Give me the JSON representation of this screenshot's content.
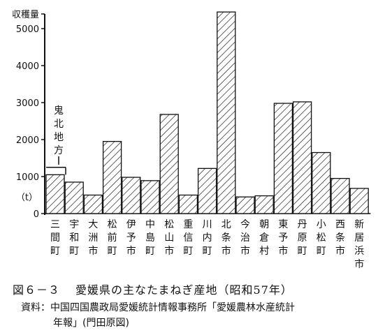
{
  "chart_data": {
    "type": "bar",
    "ylabel": "収穫量",
    "unit": "（t）",
    "ylim": [
      0,
      5600
    ],
    "yticks": [
      0,
      1000,
      2000,
      3000,
      4000,
      5000
    ],
    "categories": [
      [
        "三",
        "間",
        "町"
      ],
      [
        "宇",
        "和",
        "町"
      ],
      [
        "大",
        "洲",
        "市"
      ],
      [
        "松",
        "前",
        "町"
      ],
      [
        "伊",
        "予",
        "市"
      ],
      [
        "中",
        "島",
        "町"
      ],
      [
        "松",
        "山",
        "市"
      ],
      [
        "重",
        "信",
        "町"
      ],
      [
        "川",
        "内",
        "町"
      ],
      [
        "北",
        "条",
        "市"
      ],
      [
        "今",
        "治",
        "市"
      ],
      [
        "朝",
        "倉",
        "村"
      ],
      [
        "東",
        "予",
        "市"
      ],
      [
        "丹",
        "原",
        "町"
      ],
      [
        "小",
        "松",
        "町"
      ],
      [
        "西",
        "条",
        "市"
      ],
      [
        "新",
        "居",
        "浜",
        "市"
      ]
    ],
    "values": [
      1050,
      850,
      500,
      1950,
      980,
      890,
      2680,
      500,
      1220,
      5450,
      450,
      480,
      2980,
      3020,
      1650,
      950,
      680
    ],
    "annotation": {
      "text": [
        "鬼",
        "北",
        "地",
        "方"
      ],
      "target_value": 1250
    }
  },
  "figure": {
    "number": "図６－３",
    "title": "愛媛県の主なたまねぎ産地（昭和57年）"
  },
  "source": {
    "line1": "資料：中国四国農政局愛媛統計情報事務所「愛媛農林水産統計",
    "line2": "年報」(門田原図)"
  }
}
